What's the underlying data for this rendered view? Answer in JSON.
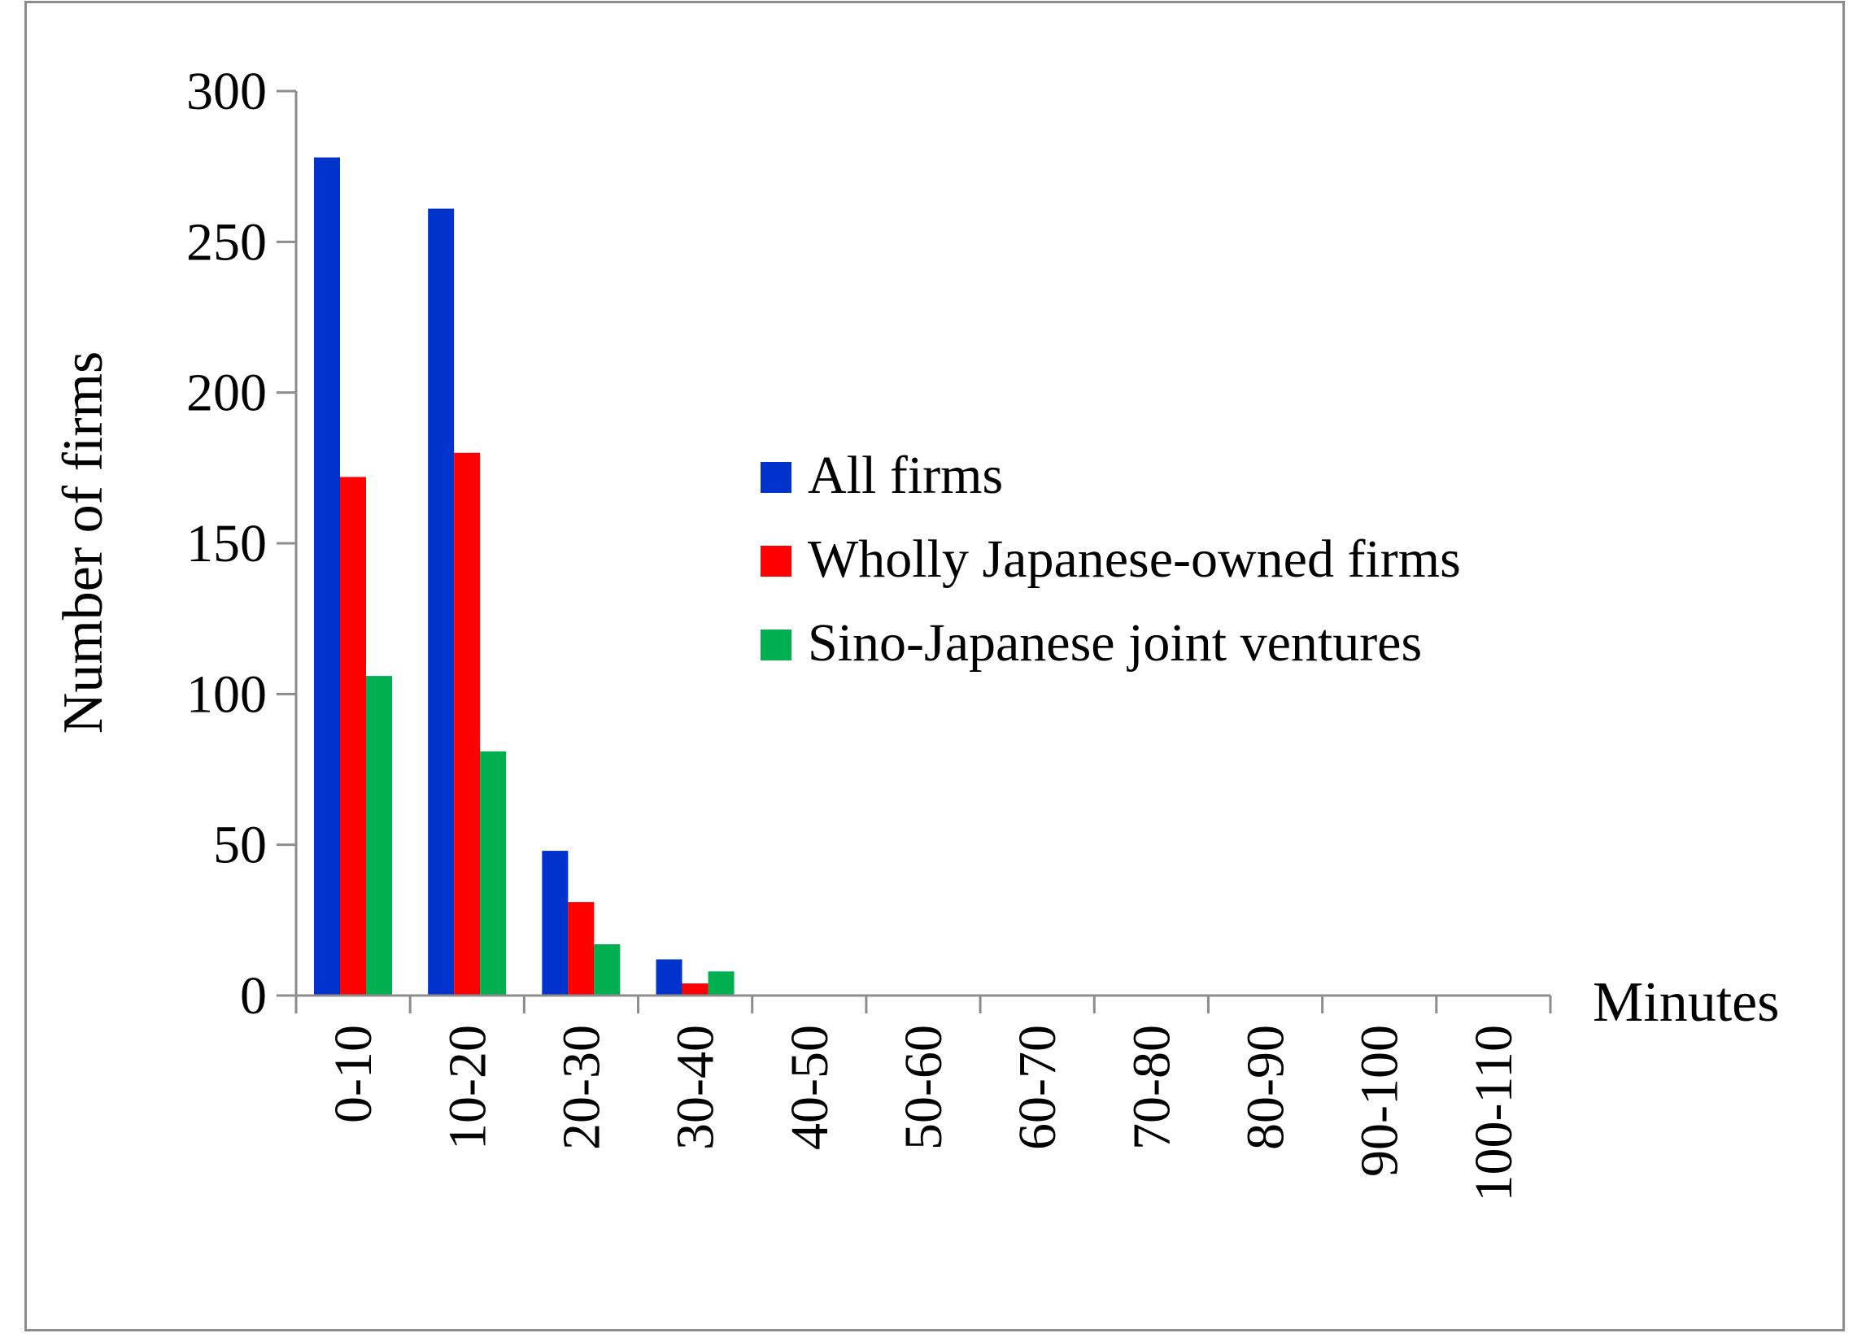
{
  "chart_data": {
    "type": "bar",
    "categories": [
      "0-10",
      "10-20",
      "20-30",
      "30-40",
      "40-50",
      "50-60",
      "60-70",
      "70-80",
      "80-90",
      "90-100",
      "100-110"
    ],
    "series": [
      {
        "name": "All firms",
        "color": "#0033cc",
        "values": [
          278,
          261,
          48,
          12,
          0,
          0,
          0,
          0,
          0,
          0,
          0
        ]
      },
      {
        "name": "Wholly Japanese-owned firms",
        "color": "#ff0000",
        "values": [
          172,
          180,
          31,
          4,
          0,
          0,
          0,
          0,
          0,
          0,
          0
        ]
      },
      {
        "name": "Sino-Japanese joint ventures",
        "color": "#00b050",
        "values": [
          106,
          81,
          17,
          8,
          0,
          0,
          0,
          0,
          0,
          0,
          0
        ]
      }
    ],
    "yticks": [
      "0",
      "50",
      "100",
      "150",
      "200",
      "250",
      "300"
    ],
    "ylim": [
      0,
      300
    ],
    "xlabel": "Minutes",
    "ylabel": "Number of firms",
    "grid": false,
    "legend_position": "center-right"
  }
}
